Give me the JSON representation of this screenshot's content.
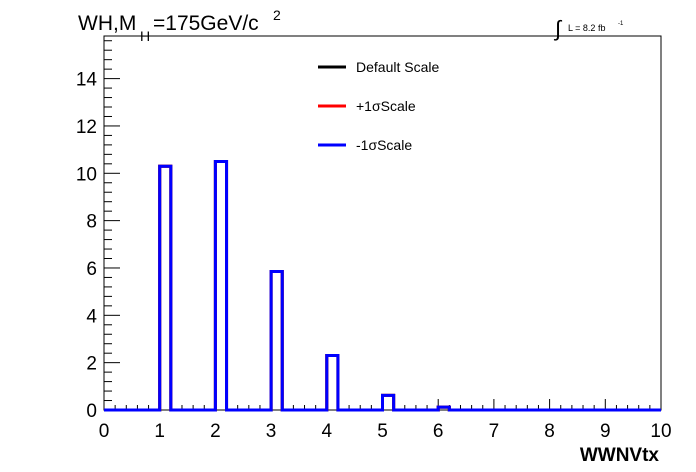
{
  "chart_data": {
    "type": "histogram",
    "title": {
      "part1": "WH,M",
      "subscript": "H",
      "part2": "=175GeV/c",
      "superscript": "2"
    },
    "luminosity": {
      "integral_symbol": "∫",
      "text": "L = 8.2 fb",
      "superscript": "-1"
    },
    "xlabel": "WWNVtx",
    "ylabel": "",
    "xlim": [
      0,
      10
    ],
    "ylim": [
      0,
      15.8
    ],
    "x_ticks": [
      "0",
      "1",
      "2",
      "3",
      "4",
      "5",
      "6",
      "7",
      "8",
      "9",
      "10"
    ],
    "y_ticks": [
      "0",
      "2",
      "4",
      "6",
      "8",
      "10",
      "12",
      "14"
    ],
    "bin_width": 0.2,
    "bins_x": [
      1.0,
      2.0,
      3.0,
      4.0,
      5.0,
      6.0
    ],
    "series": [
      {
        "name": "Default Scale",
        "color": "#000000",
        "values": [
          10.3,
          10.5,
          5.85,
          2.3,
          0.62,
          0.12
        ]
      },
      {
        "name": "+1σScale",
        "color": "#ff0000",
        "values": [
          10.3,
          10.5,
          5.85,
          2.3,
          0.62,
          0.12
        ]
      },
      {
        "name": "-1σScale",
        "color": "#0000ff",
        "values": [
          10.3,
          10.5,
          5.85,
          2.3,
          0.62,
          0.12
        ]
      }
    ],
    "legend": [
      {
        "label": "Default Scale",
        "color": "#000000"
      },
      {
        "label": "+1σScale",
        "color": "#ff0000"
      },
      {
        "label": "-1σScale",
        "color": "#0000ff"
      }
    ],
    "legend_position": "top-center",
    "grid": false
  }
}
